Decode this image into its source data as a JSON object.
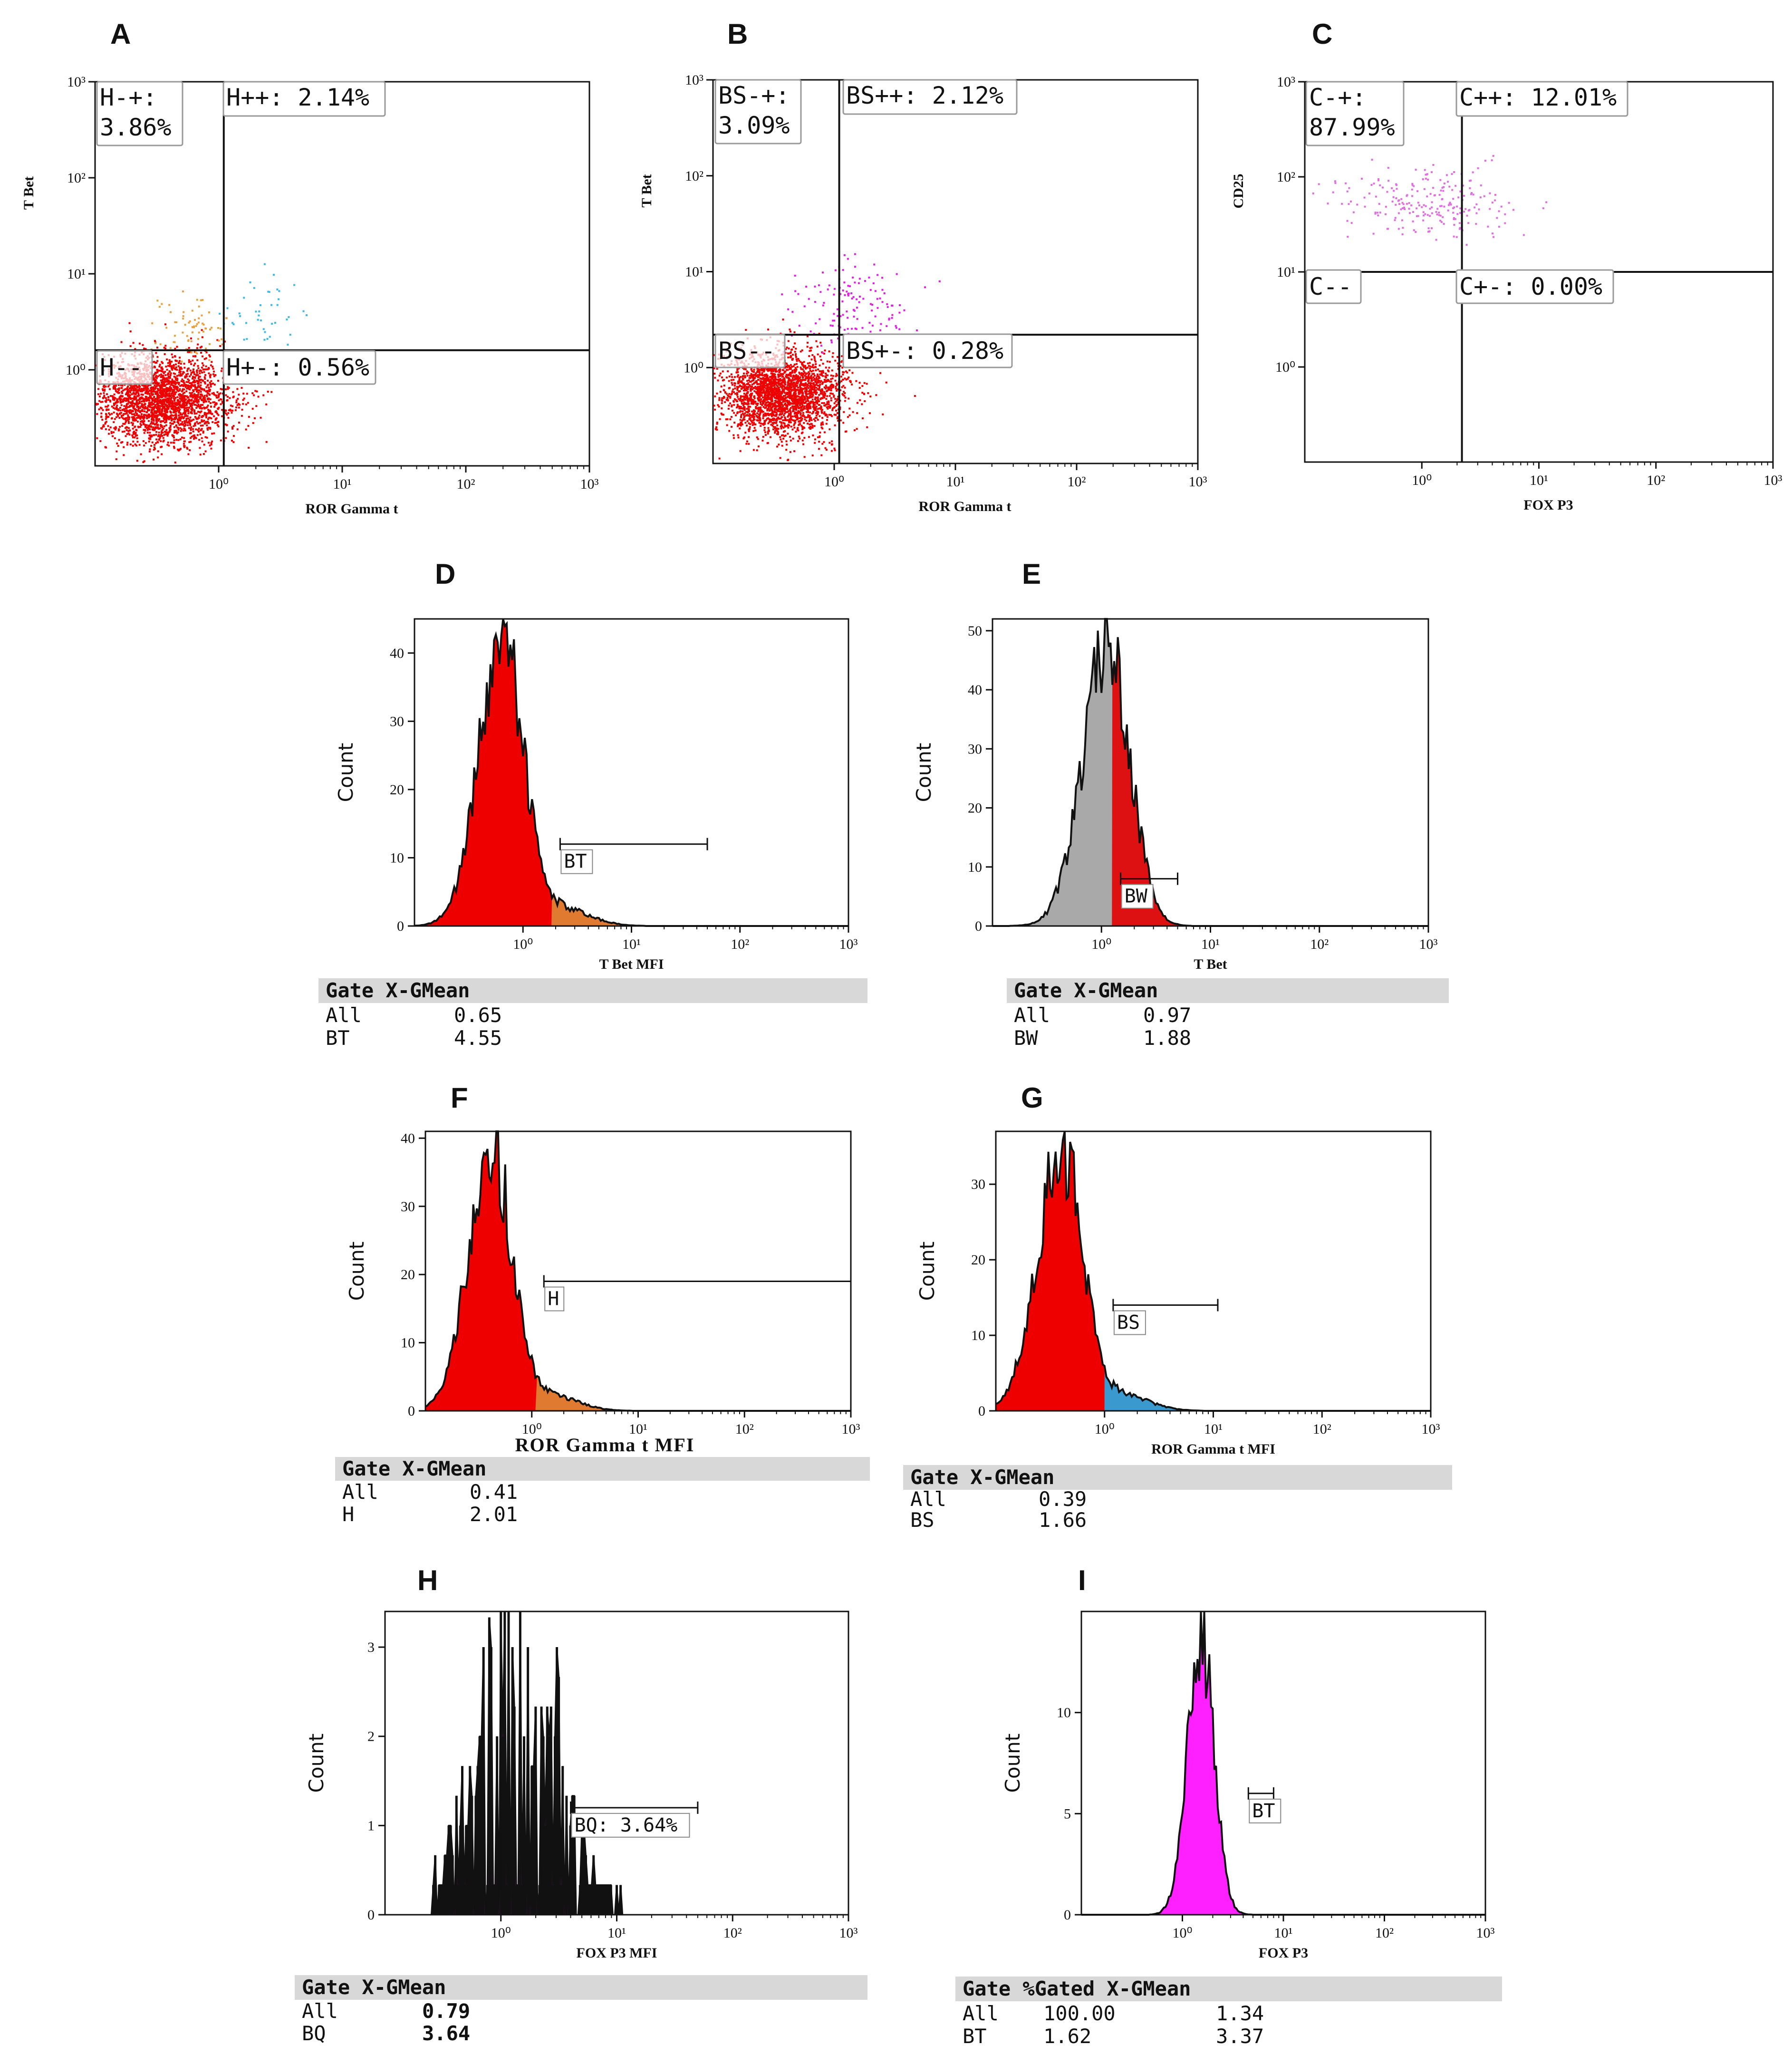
{
  "figure": {
    "panels": {
      "A": {
        "letter": "A",
        "xlabel": "ROR Gamma t",
        "ylabel": "T Bet",
        "quadrants": {
          "tl": [
            "H-+:",
            "3.86%"
          ],
          "tr": [
            "H++: 2.14%"
          ],
          "bl": [
            "H--"
          ],
          "br": [
            "H+-: 0.56%"
          ]
        }
      },
      "B": {
        "letter": "B",
        "xlabel": "ROR Gamma t",
        "ylabel": "T Bet",
        "quadrants": {
          "tl": [
            "BS-+:",
            "3.09%"
          ],
          "tr": [
            "BS++: 2.12%"
          ],
          "bl": [
            "BS--"
          ],
          "br": [
            "BS+-: 0.28%"
          ]
        }
      },
      "C": {
        "letter": "C",
        "xlabel": "FOX P3",
        "ylabel": "CD25",
        "quadrants": {
          "tl": [
            "C-+:",
            "87.99%"
          ],
          "tr": [
            "C++: 12.01%"
          ],
          "bl": [
            "C--"
          ],
          "br": [
            "C+-: 0.00%"
          ]
        }
      },
      "D": {
        "letter": "D",
        "xlabel": "T Bet MFI",
        "ylabel": "Count",
        "gate": "BT",
        "table": {
          "header": "Gate X-GMean",
          "rows": [
            [
              "All",
              "0.65"
            ],
            [
              "BT",
              "4.55"
            ]
          ]
        }
      },
      "E": {
        "letter": "E",
        "xlabel": "T Bet",
        "ylabel": "Count",
        "gate": "BW",
        "table": {
          "header": "Gate X-GMean",
          "rows": [
            [
              "All",
              "0.97"
            ],
            [
              "BW",
              "1.88"
            ]
          ]
        }
      },
      "F": {
        "letter": "F",
        "xlabel": "ROR Gamma t MFI",
        "ylabel": "Count",
        "gate": "H",
        "table": {
          "header": "Gate X-GMean",
          "rows": [
            [
              "All",
              "0.41"
            ],
            [
              "H",
              "2.01"
            ]
          ]
        }
      },
      "G": {
        "letter": "G",
        "xlabel": "ROR Gamma t MFI",
        "ylabel": "Count",
        "gate": "BS",
        "table": {
          "header": "Gate X-GMean",
          "rows": [
            [
              "All",
              "0.39"
            ],
            [
              "BS",
              "1.66"
            ]
          ]
        }
      },
      "H": {
        "letter": "H",
        "xlabel": "FOX P3 MFI",
        "ylabel": "Count",
        "gate": "BQ: 3.64%",
        "table": {
          "header": "Gate X-GMean",
          "rows": [
            [
              "All",
              "0.79"
            ],
            [
              "BQ",
              "3.64"
            ]
          ]
        }
      },
      "I": {
        "letter": "I",
        "xlabel": "FOX P3",
        "ylabel": "Count",
        "gate": "BT",
        "table": {
          "header": "Gate %Gated X-GMean",
          "rows": [
            [
              "All",
              "100.00",
              "1.34"
            ],
            [
              "BT",
              "1.62",
              "3.37"
            ]
          ]
        }
      }
    }
  },
  "chart_data": [
    {
      "panel": "A",
      "type": "scatter",
      "xscale": "log",
      "yscale": "log",
      "xlim": [
        0.1,
        1000
      ],
      "ylim": [
        0.1,
        1000
      ],
      "xticks": [
        "10⁰",
        "10¹",
        "10²",
        "10³"
      ],
      "yticks": [
        "10⁰",
        "10¹",
        "10²",
        "10³"
      ],
      "xlabel": "ROR Gamma t",
      "ylabel": "T Bet",
      "gate_x": 1.1,
      "gate_y": 1.6,
      "clusters": [
        {
          "color": "#ee0000",
          "n": 2600,
          "cx": 0.35,
          "cy": 0.5,
          "sx": 0.28,
          "sy": 0.23
        },
        {
          "color": "#e8a040",
          "n": 70,
          "cx": 0.6,
          "cy": 3.0,
          "sx": 0.15,
          "sy": 0.18
        },
        {
          "color": "#40b8e8",
          "n": 45,
          "cx": 2.0,
          "cy": 4.0,
          "sx": 0.17,
          "sy": 0.2
        }
      ]
    },
    {
      "panel": "B",
      "type": "scatter",
      "xscale": "log",
      "yscale": "log",
      "xlim": [
        0.1,
        1000
      ],
      "ylim": [
        0.1,
        1000
      ],
      "xticks": [
        "10⁰",
        "10¹",
        "10²",
        "10³"
      ],
      "yticks": [
        "10⁰",
        "10¹",
        "10²",
        "10³"
      ],
      "xlabel": "ROR Gamma t",
      "ylabel": "T Bet",
      "gate_x": 1.1,
      "gate_y": 2.2,
      "clusters": [
        {
          "color": "#ee0000",
          "n": 2600,
          "cx": 0.35,
          "cy": 0.55,
          "sx": 0.26,
          "sy": 0.22
        },
        {
          "color": "#e020e0",
          "n": 150,
          "cx": 1.5,
          "cy": 4.0,
          "sx": 0.22,
          "sy": 0.25
        }
      ]
    },
    {
      "panel": "C",
      "type": "scatter",
      "xscale": "log",
      "yscale": "log",
      "xlim": [
        0.1,
        1000
      ],
      "ylim": [
        0.1,
        1000
      ],
      "xticks": [
        "10⁰",
        "10¹",
        "10²",
        "10³"
      ],
      "yticks": [
        "10⁰",
        "10¹",
        "10²",
        "10³"
      ],
      "xlabel": "FOX P3",
      "ylabel": "CD25",
      "gate_x": 2.2,
      "gate_y": 10,
      "clusters": [
        {
          "color": "#e070e0",
          "n": 230,
          "cx": 1.0,
          "cy": 55,
          "sx": 0.38,
          "sy": 0.18
        }
      ]
    },
    {
      "panel": "D",
      "type": "histogram",
      "xscale": "log",
      "xlim": [
        0.1,
        1000
      ],
      "ylim": [
        0,
        45
      ],
      "yticks": [
        0,
        10,
        20,
        30,
        40
      ],
      "xticks": [
        "10⁰",
        "10¹",
        "10²",
        "10³"
      ],
      "xlabel": "T Bet MFI",
      "ylabel": "Count",
      "gate_label": "BT",
      "gate_range": [
        2.2,
        50
      ],
      "gate_count": 12,
      "fill": "#ee0000",
      "secondary_fill": "#e07a30",
      "peak_x": 0.65,
      "peak_count": 42
    },
    {
      "panel": "E",
      "type": "histogram",
      "xscale": "log",
      "xlim": [
        0.1,
        1000
      ],
      "ylim": [
        0,
        52
      ],
      "yticks": [
        0,
        10,
        20,
        30,
        40,
        50
      ],
      "xticks": [
        "10⁰",
        "10¹",
        "10²",
        "10³"
      ],
      "xlabel": "T Bet",
      "ylabel": "Count",
      "gate_label": "BW",
      "gate_range": [
        1.5,
        5
      ],
      "gate_count": 8,
      "fill": "#a9a9a9",
      "secondary_fill": "#dd1111",
      "peak_x": 1.15,
      "peak_count": 48
    },
    {
      "panel": "F",
      "type": "histogram",
      "xscale": "log",
      "xlim": [
        0.1,
        1000
      ],
      "ylim": [
        0,
        41
      ],
      "yticks": [
        0,
        10,
        20,
        30,
        40
      ],
      "xticks": [
        "10⁰",
        "10¹",
        "10²",
        "10³"
      ],
      "xlabel": "ROR Gamma t MFI",
      "ylabel": "Count",
      "gate_label": "H",
      "gate_range": [
        1.3,
        1000
      ],
      "gate_count": 19,
      "fill": "#ee0000",
      "secondary_fill": "#e07a30",
      "peak_x": 0.42,
      "peak_count": 38
    },
    {
      "panel": "G",
      "type": "histogram",
      "xscale": "log",
      "xlim": [
        0.1,
        1000
      ],
      "ylim": [
        0,
        37
      ],
      "yticks": [
        0,
        10,
        20,
        30
      ],
      "xticks": [
        "10⁰",
        "10¹",
        "10²",
        "10³"
      ],
      "xlabel": "ROR Gamma t MFI",
      "ylabel": "Count",
      "gate_label": "BS",
      "gate_range": [
        1.2,
        11
      ],
      "gate_count": 14,
      "fill": "#ee0000",
      "secondary_fill": "#3a9ad0",
      "peak_x": 0.4,
      "peak_count": 35
    },
    {
      "panel": "H",
      "type": "histogram",
      "xscale": "log",
      "xlim": [
        0.1,
        1000
      ],
      "ylim": [
        0,
        3.4
      ],
      "yticks": [
        0,
        1,
        2,
        3
      ],
      "xticks": [
        "10⁰",
        "10¹",
        "10²",
        "10³"
      ],
      "xlabel": "FOX P3 MFI",
      "ylabel": "Count",
      "gate_label": "BQ: 3.64%",
      "gate_range": [
        4,
        50
      ],
      "gate_count": 1.2,
      "fill": "#ff20ff",
      "secondary_fill": "#ff20ff",
      "peak_x": 1.4,
      "peak_count": 3.3
    },
    {
      "panel": "I",
      "type": "histogram",
      "xscale": "log",
      "xlim": [
        0.1,
        1000
      ],
      "ylim": [
        0,
        15
      ],
      "yticks": [
        0,
        5,
        10
      ],
      "xticks": [
        "10⁰",
        "10¹",
        "10²",
        "10³"
      ],
      "xlabel": "FOX P3",
      "ylabel": "Count",
      "gate_label": "BT",
      "gate_range": [
        4.5,
        8
      ],
      "gate_count": 6,
      "fill": "#ff20ff",
      "secondary_fill": "#ff20ff",
      "peak_x": 1.5,
      "peak_count": 14
    }
  ]
}
